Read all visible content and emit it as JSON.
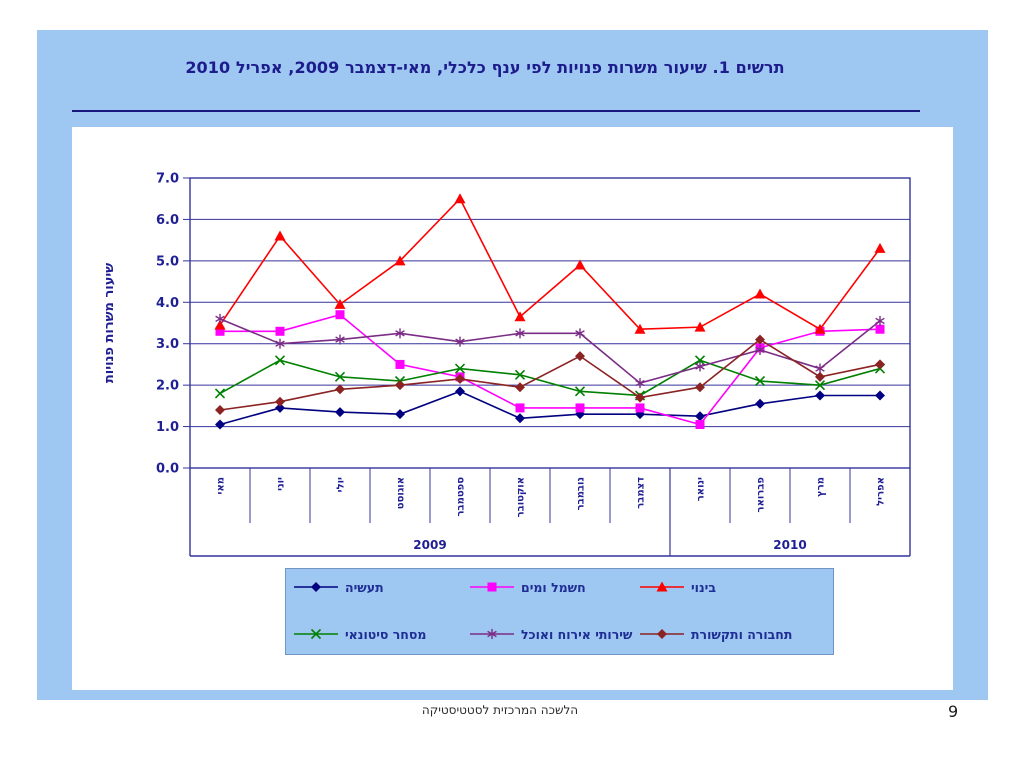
{
  "slide": {
    "title": "תרשים 1. שיעור משרות פנויות לפי ענף כלכלי, מאי-דצמבר 2009, אפריל 2010",
    "footer": "הלשכה המרכזית לסטטיסטיקה",
    "page_number": "9",
    "colors": {
      "panel_blue": "#9EC7F2",
      "title_navy": "#1C1C8C",
      "axis_line_navy": "#34349E",
      "axis_text_navy": "#1F1F94"
    }
  },
  "chart_data": {
    "type": "line",
    "title": "",
    "xlabel": "",
    "ylabel": "שיעור משרות פנויות",
    "ylim": [
      0,
      7
    ],
    "ytick_labels": [
      "0.0",
      "1.0",
      "2.0",
      "3.0",
      "4.0",
      "5.0",
      "6.0",
      "7.0"
    ],
    "grid": true,
    "legend_position": "bottom",
    "categories": [
      "מאי",
      "יוני",
      "יולי",
      "אוגוסט",
      "ספטמבר",
      "אוקטובר",
      "נובמבר",
      "דצמבר",
      "ינואר",
      "פברואר",
      "מרץ",
      "אפריל"
    ],
    "year_groups": [
      {
        "label": "2009",
        "span": 8
      },
      {
        "label": "2010",
        "span": 4
      }
    ],
    "series": [
      {
        "name": "תעשיה",
        "color": "#000080",
        "marker": "diamond",
        "values": [
          1.05,
          1.45,
          1.35,
          1.3,
          1.85,
          1.2,
          1.3,
          1.3,
          1.25,
          1.55,
          1.75,
          1.75
        ]
      },
      {
        "name": "חשמל ומים",
        "color": "#FF00FF",
        "marker": "square",
        "values": [
          3.3,
          3.3,
          3.7,
          2.5,
          2.2,
          1.45,
          1.45,
          1.45,
          1.05,
          2.9,
          3.3,
          3.35
        ]
      },
      {
        "name": "בינוי",
        "color": "#FF0000",
        "marker": "triangle",
        "values": [
          3.45,
          5.6,
          3.95,
          5.0,
          6.5,
          3.65,
          4.9,
          3.35,
          3.4,
          4.2,
          3.35,
          5.3
        ]
      },
      {
        "name": "מסחר סיטונאי",
        "color": "#008000",
        "marker": "x",
        "values": [
          1.8,
          2.6,
          2.2,
          2.1,
          2.4,
          2.25,
          1.85,
          1.75,
          2.6,
          2.1,
          2.0,
          2.4
        ]
      },
      {
        "name": "שירותי אירוח ואוכל",
        "color": "#7B2D86",
        "marker": "asterisk",
        "values": [
          3.6,
          3.0,
          3.1,
          3.25,
          3.05,
          3.25,
          3.25,
          2.05,
          2.45,
          2.85,
          2.4,
          3.55
        ]
      },
      {
        "name": "תחבורה ותקשורת",
        "color": "#8B2323",
        "marker": "diamond",
        "values": [
          1.4,
          1.6,
          1.9,
          2.0,
          2.15,
          1.95,
          2.7,
          1.7,
          1.95,
          3.1,
          2.2,
          2.5
        ]
      }
    ]
  }
}
